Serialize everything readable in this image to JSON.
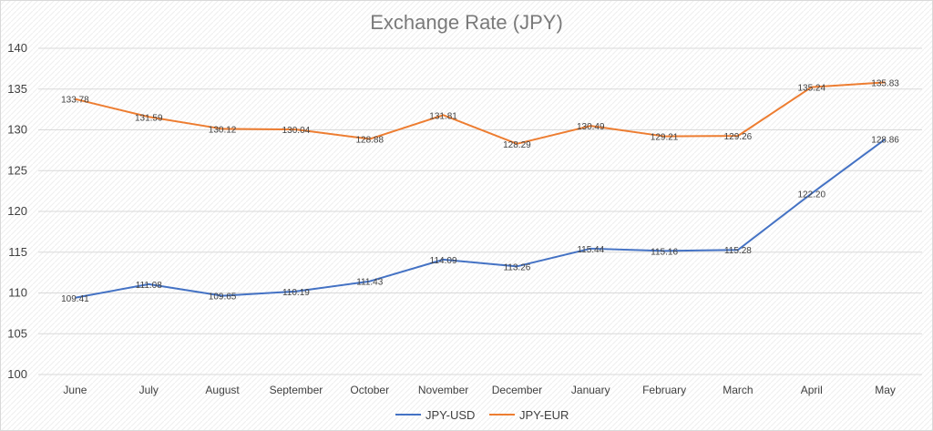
{
  "chart_data": {
    "type": "line",
    "title": "Exchange Rate (JPY)",
    "xlabel": "",
    "ylabel": "",
    "categories": [
      "June",
      "July",
      "August",
      "September",
      "October",
      "November",
      "December",
      "January",
      "February",
      "March",
      "April",
      "May"
    ],
    "ylim": [
      100,
      140
    ],
    "yticks": [
      100,
      105,
      110,
      115,
      120,
      125,
      130,
      135,
      140
    ],
    "grid": true,
    "legend_position": "bottom",
    "series": [
      {
        "name": "JPY-USD",
        "color": "#4472c4",
        "values": [
          109.41,
          111.08,
          109.65,
          110.19,
          111.43,
          114.09,
          113.26,
          115.44,
          115.16,
          115.28,
          122.2,
          128.86
        ]
      },
      {
        "name": "JPY-EUR",
        "color": "#ed7d31",
        "values": [
          133.78,
          131.59,
          130.12,
          130.04,
          128.88,
          131.81,
          128.29,
          130.49,
          129.21,
          129.26,
          135.24,
          135.83
        ]
      }
    ]
  }
}
